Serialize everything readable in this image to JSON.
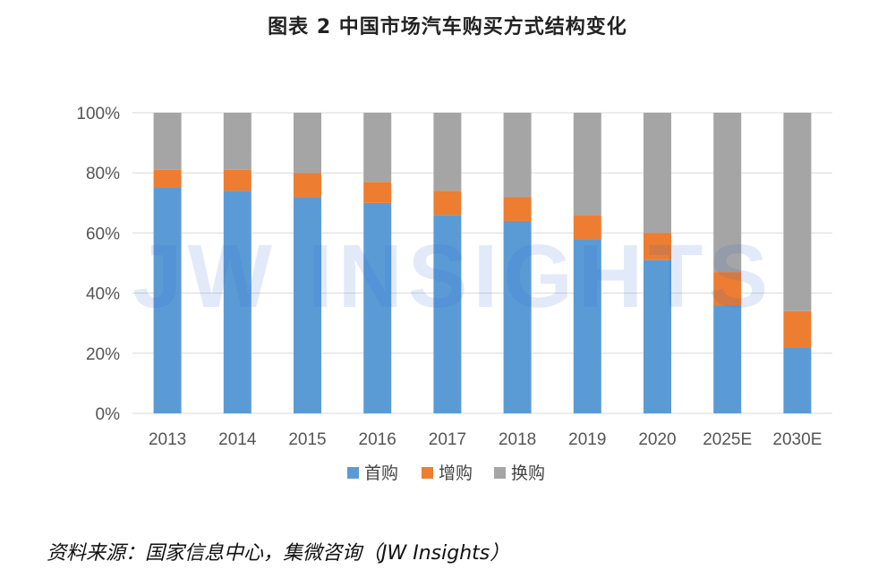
{
  "chart_data": {
    "type": "bar",
    "stacked": true,
    "title": "图表 2  中国市场汽车购买方式结构变化",
    "categories": [
      "2013",
      "2014",
      "2015",
      "2016",
      "2017",
      "2018",
      "2019",
      "2020",
      "2025E",
      "2030E"
    ],
    "series": [
      {
        "name": "首购",
        "color": "#5b9bd5",
        "values": [
          75,
          74,
          72,
          70,
          66,
          64,
          58,
          51,
          36,
          22
        ]
      },
      {
        "name": "增购",
        "color": "#ed7d31",
        "values": [
          6,
          7,
          8,
          7,
          8,
          8,
          8,
          9,
          11,
          12
        ]
      },
      {
        "name": "换购",
        "color": "#a5a5a5",
        "values": [
          19,
          19,
          20,
          23,
          26,
          28,
          34,
          40,
          53,
          66
        ]
      }
    ],
    "ylim": [
      0,
      100
    ],
    "yticks": [
      "0%",
      "20%",
      "40%",
      "60%",
      "80%",
      "100%"
    ],
    "legend_position": "bottom",
    "grid": true
  },
  "watermark": "JW INSIGHTS",
  "source": "资料来源：国家信息中心，集微咨询（JW Insights）"
}
